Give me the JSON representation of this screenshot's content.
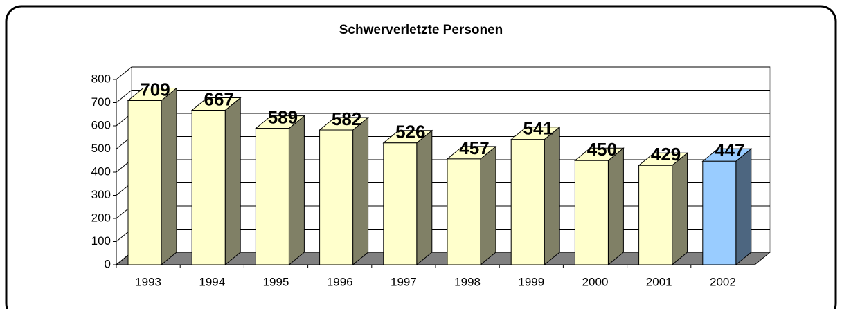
{
  "chart_data": {
    "type": "bar3d",
    "title": "Schwerverletzte Personen",
    "categories": [
      "1993",
      "1994",
      "1995",
      "1996",
      "1997",
      "1998",
      "1999",
      "2000",
      "2001",
      "2002"
    ],
    "values": [
      709,
      667,
      589,
      582,
      526,
      457,
      541,
      450,
      429,
      447
    ],
    "colors": [
      "#ffffcc",
      "#ffffcc",
      "#ffffcc",
      "#ffffcc",
      "#ffffcc",
      "#ffffcc",
      "#ffffcc",
      "#ffffcc",
      "#ffffcc",
      "#99ccff"
    ],
    "side_colors": [
      "#808066",
      "#808066",
      "#808066",
      "#808066",
      "#808066",
      "#808066",
      "#808066",
      "#808066",
      "#808066",
      "#4d6680"
    ],
    "ylim": [
      0,
      800
    ],
    "yticks": [
      0,
      100,
      200,
      300,
      400,
      500,
      600,
      700,
      800
    ],
    "grid": true
  }
}
